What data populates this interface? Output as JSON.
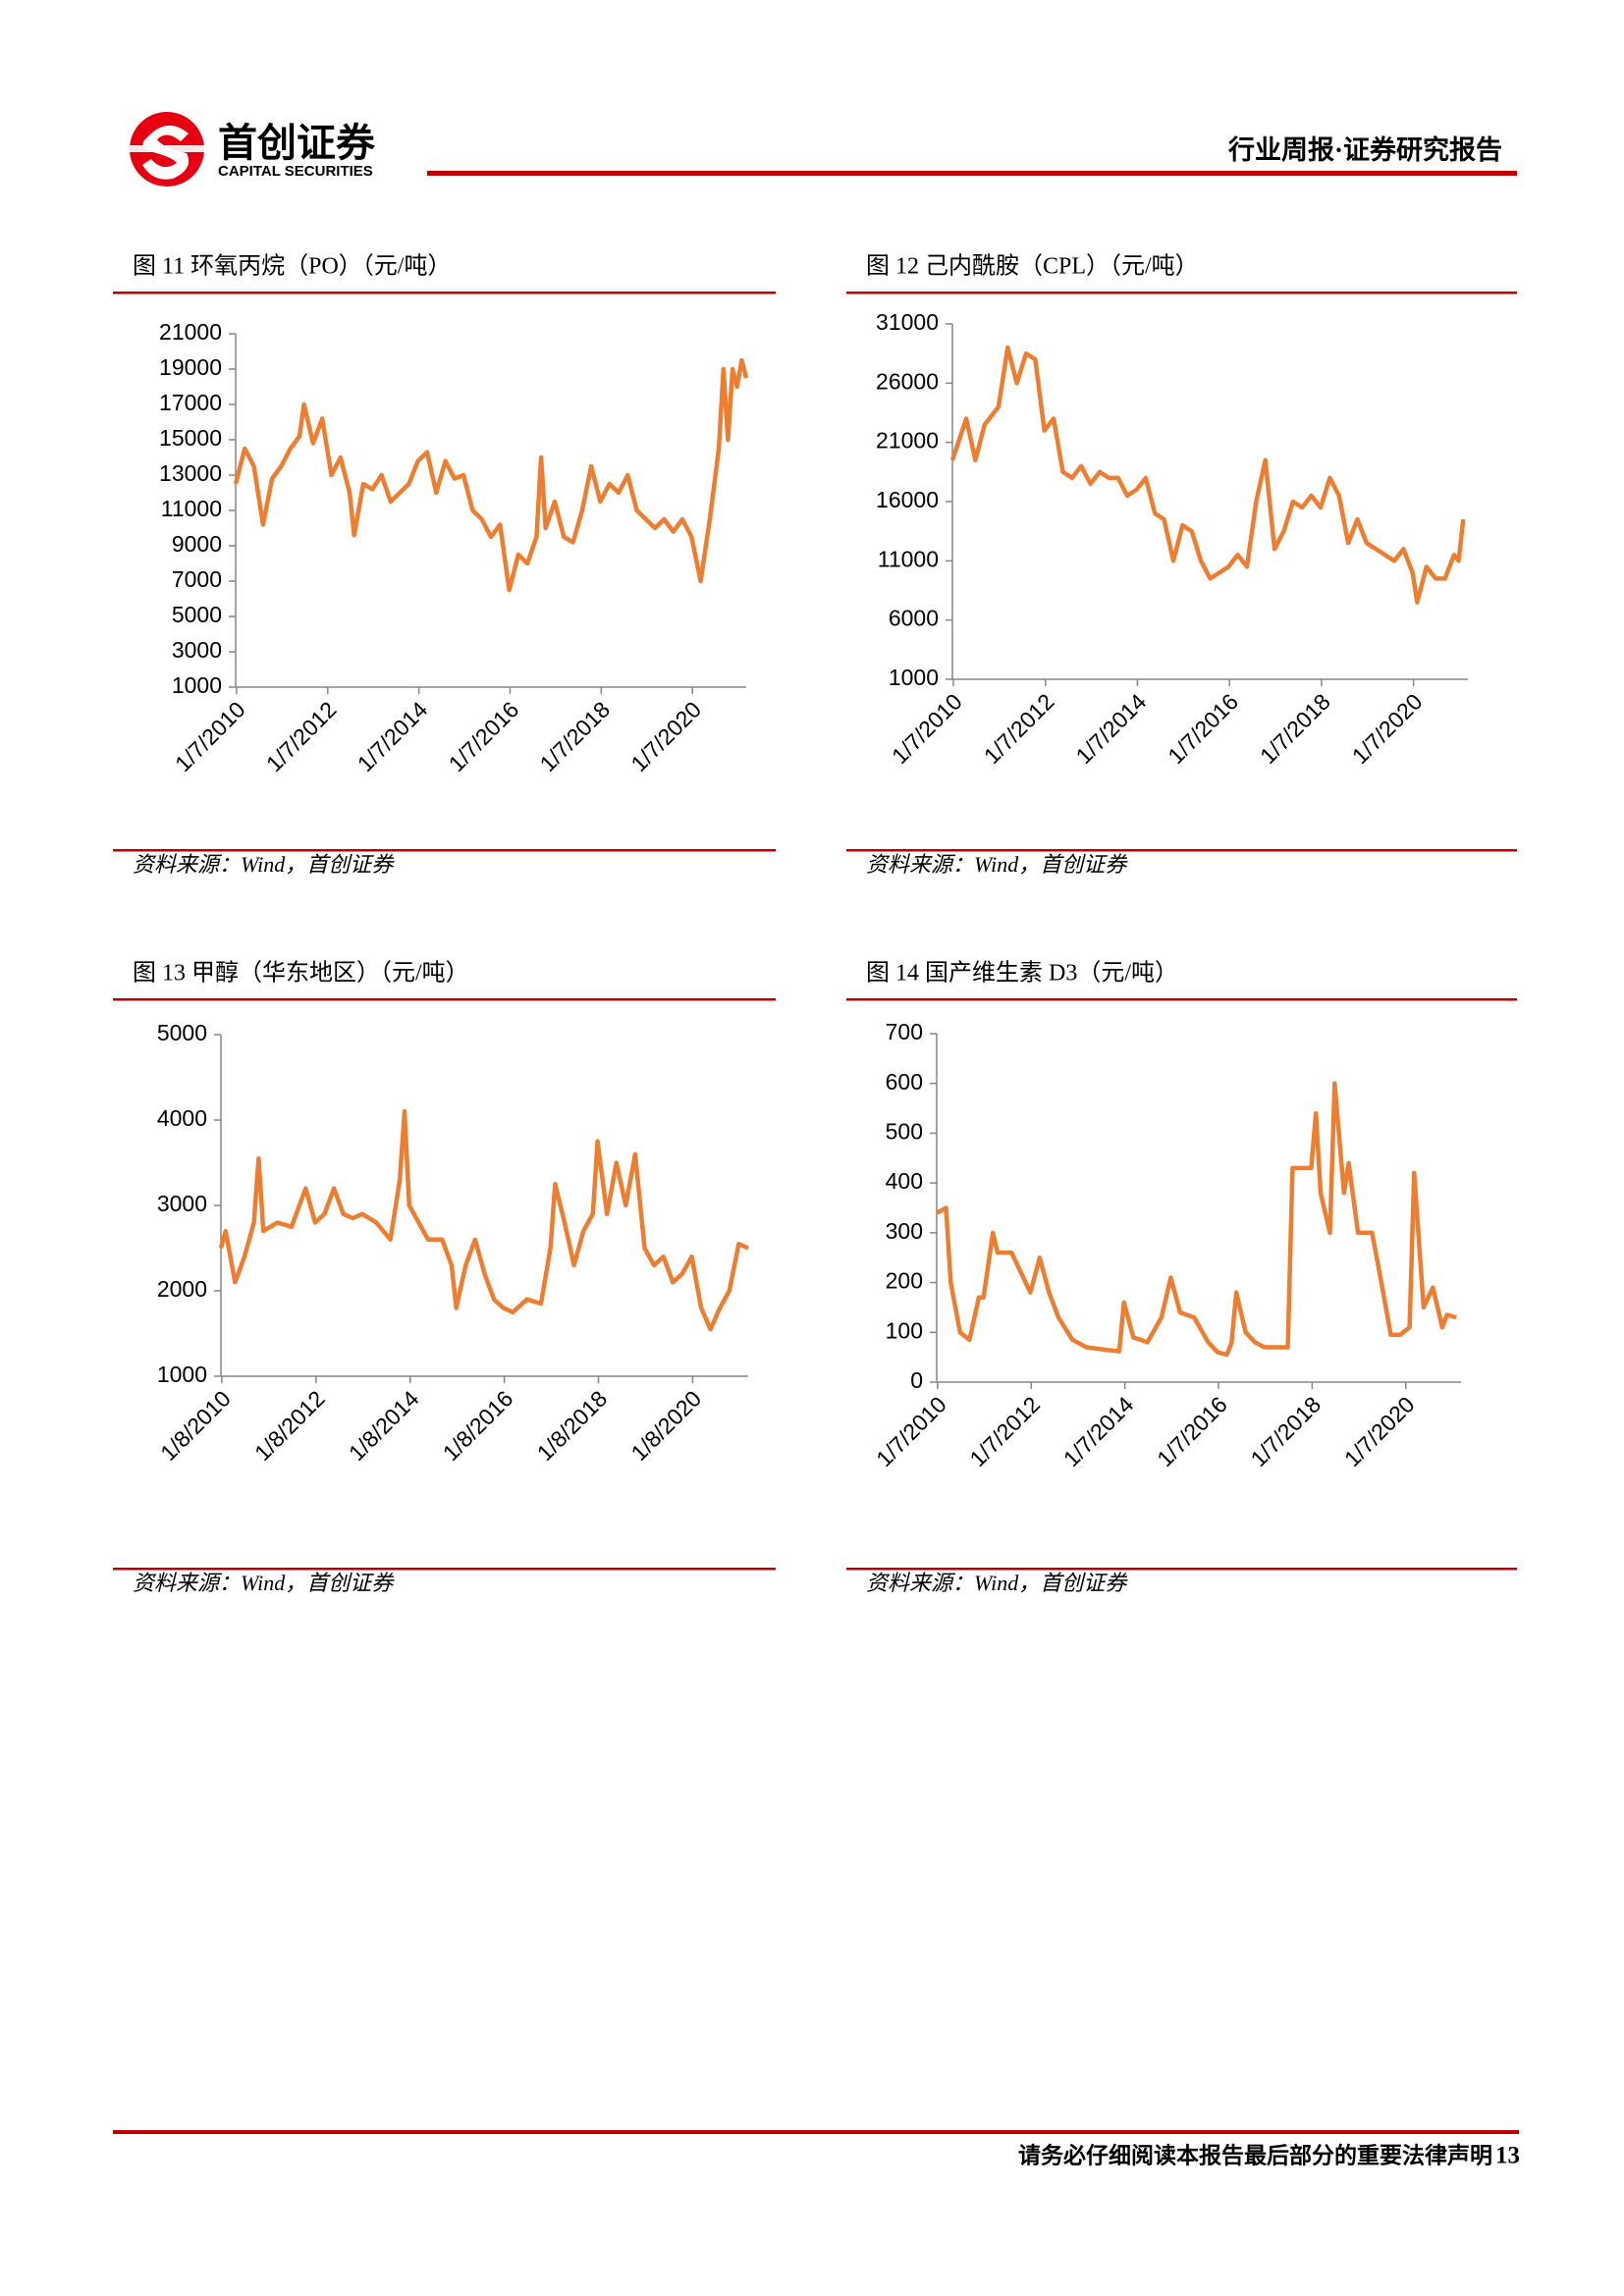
{
  "header": {
    "logo_cn": "首创证券",
    "logo_en": "CAPITAL SECURITIES",
    "report_type": "行业周报·证券研究报告"
  },
  "chart_data": [
    {
      "type": "line",
      "title": "图 11 环氧丙烷（PO）（元/吨）",
      "source": "资料来源：Wind，首创证券",
      "color": "#ED7D31",
      "x": [
        2010.0,
        2010.2,
        2010.4,
        2010.6,
        2010.8,
        2011.0,
        2011.2,
        2011.4,
        2011.5,
        2011.7,
        2011.9,
        2012.1,
        2012.3,
        2012.5,
        2012.6,
        2012.8,
        2013.0,
        2013.2,
        2013.4,
        2013.6,
        2013.8,
        2014.0,
        2014.2,
        2014.4,
        2014.6,
        2014.8,
        2015.0,
        2015.2,
        2015.4,
        2015.6,
        2015.8,
        2016.0,
        2016.2,
        2016.4,
        2016.6,
        2016.7,
        2016.8,
        2017.0,
        2017.2,
        2017.4,
        2017.6,
        2017.8,
        2018.0,
        2018.2,
        2018.4,
        2018.6,
        2018.8,
        2019.0,
        2019.2,
        2019.4,
        2019.6,
        2019.8,
        2020.0,
        2020.2,
        2020.4,
        2020.6,
        2020.7,
        2020.8,
        2020.9,
        2021.0,
        2021.1,
        2021.2
      ],
      "values": [
        12500,
        14500,
        13500,
        10200,
        12800,
        13500,
        14500,
        15200,
        17000,
        14800,
        16200,
        13000,
        14000,
        12000,
        9600,
        12500,
        12200,
        13000,
        11500,
        12000,
        12500,
        13800,
        14300,
        12000,
        13800,
        12800,
        13000,
        11000,
        10500,
        9500,
        10200,
        6500,
        8500,
        8000,
        9500,
        14000,
        10000,
        11500,
        9500,
        9200,
        11000,
        13500,
        11500,
        12500,
        12000,
        13000,
        11000,
        10500,
        10000,
        10500,
        9800,
        10500,
        9500,
        7000,
        10500,
        14500,
        19000,
        15000,
        19000,
        18000,
        19500,
        18500
      ],
      "xlim": [
        2010,
        2021.2
      ],
      "xticks": [
        {
          "value": 2010.02,
          "label": "1/7/2010"
        },
        {
          "value": 2012.02,
          "label": "1/7/2012"
        },
        {
          "value": 2014.02,
          "label": "1/7/2014"
        },
        {
          "value": 2016.02,
          "label": "1/7/2016"
        },
        {
          "value": 2018.02,
          "label": "1/7/2018"
        },
        {
          "value": 2020.02,
          "label": "1/7/2020"
        }
      ],
      "ylim": [
        1000,
        21000
      ],
      "yticks": [
        1000,
        3000,
        5000,
        7000,
        9000,
        11000,
        13000,
        15000,
        17000,
        19000,
        21000
      ]
    },
    {
      "type": "line",
      "title": "图 12 己内酰胺（CPL）（元/吨）",
      "source": "资料来源：Wind，首创证券",
      "color": "#ED7D31",
      "x": [
        2010.0,
        2010.3,
        2010.5,
        2010.7,
        2011.0,
        2011.2,
        2011.4,
        2011.6,
        2011.8,
        2012.0,
        2012.2,
        2012.4,
        2012.6,
        2012.8,
        2013.0,
        2013.2,
        2013.4,
        2013.6,
        2013.8,
        2014.0,
        2014.2,
        2014.4,
        2014.6,
        2014.8,
        2015.0,
        2015.2,
        2015.4,
        2015.6,
        2015.8,
        2016.0,
        2016.2,
        2016.4,
        2016.6,
        2016.8,
        2017.0,
        2017.2,
        2017.4,
        2017.6,
        2017.8,
        2018.0,
        2018.2,
        2018.4,
        2018.6,
        2018.8,
        2019.0,
        2019.2,
        2019.4,
        2019.6,
        2019.8,
        2020.0,
        2020.1,
        2020.3,
        2020.5,
        2020.7,
        2020.9,
        2021.0,
        2021.1
      ],
      "values": [
        19500,
        23000,
        19500,
        22500,
        24000,
        29000,
        26000,
        28500,
        28000,
        22000,
        23000,
        18500,
        18000,
        19000,
        17500,
        18500,
        18000,
        18000,
        16500,
        17000,
        18000,
        15000,
        14500,
        11000,
        14000,
        13500,
        11000,
        9500,
        10000,
        10500,
        11500,
        10500,
        16000,
        19500,
        12000,
        13500,
        16000,
        15500,
        16500,
        15500,
        18000,
        16500,
        12500,
        14500,
        12500,
        12000,
        11500,
        11000,
        12000,
        10000,
        7500,
        10500,
        9500,
        9500,
        11500,
        11000,
        14500
      ],
      "xlim": [
        2010,
        2021.2
      ],
      "xticks": [
        {
          "value": 2010.02,
          "label": "1/7/2010"
        },
        {
          "value": 2012.02,
          "label": "1/7/2012"
        },
        {
          "value": 2014.02,
          "label": "1/7/2014"
        },
        {
          "value": 2016.02,
          "label": "1/7/2016"
        },
        {
          "value": 2018.02,
          "label": "1/7/2018"
        },
        {
          "value": 2020.02,
          "label": "1/7/2020"
        }
      ],
      "ylim": [
        1000,
        31000
      ],
      "yticks": [
        1000,
        6000,
        11000,
        16000,
        21000,
        26000,
        31000
      ]
    },
    {
      "type": "line",
      "title": "图 13 甲醇（华东地区）（元/吨）",
      "source": "资料来源：Wind，首创证券",
      "color": "#ED7D31",
      "x": [
        2010.0,
        2010.1,
        2010.3,
        2010.5,
        2010.7,
        2010.8,
        2010.9,
        2011.2,
        2011.5,
        2011.8,
        2012.0,
        2012.2,
        2012.4,
        2012.6,
        2012.8,
        2013.0,
        2013.3,
        2013.6,
        2013.8,
        2013.9,
        2014.0,
        2014.2,
        2014.4,
        2014.7,
        2014.9,
        2015.0,
        2015.2,
        2015.4,
        2015.6,
        2015.8,
        2016.0,
        2016.2,
        2016.5,
        2016.8,
        2017.0,
        2017.1,
        2017.3,
        2017.5,
        2017.7,
        2017.9,
        2018.0,
        2018.2,
        2018.4,
        2018.6,
        2018.8,
        2019.0,
        2019.2,
        2019.4,
        2019.6,
        2019.8,
        2020.0,
        2020.2,
        2020.4,
        2020.6,
        2020.8,
        2021.0,
        2021.2
      ],
      "values": [
        2500,
        2700,
        2100,
        2400,
        2800,
        3550,
        2700,
        2800,
        2750,
        3200,
        2800,
        2900,
        3200,
        2900,
        2850,
        2900,
        2800,
        2600,
        3300,
        4100,
        3000,
        2800,
        2600,
        2600,
        2300,
        1800,
        2300,
        2600,
        2200,
        1900,
        1800,
        1750,
        1900,
        1850,
        2500,
        3250,
        2800,
        2300,
        2700,
        2900,
        3750,
        2900,
        3500,
        3000,
        3600,
        2500,
        2300,
        2400,
        2100,
        2200,
        2400,
        1800,
        1550,
        1800,
        2000,
        2550,
        2500
      ],
      "xlim": [
        2010,
        2021.2
      ],
      "xticks": [
        {
          "value": 2010.02,
          "label": "1/8/2010"
        },
        {
          "value": 2012.02,
          "label": "1/8/2012"
        },
        {
          "value": 2014.02,
          "label": "1/8/2014"
        },
        {
          "value": 2016.02,
          "label": "1/8/2016"
        },
        {
          "value": 2018.02,
          "label": "1/8/2018"
        },
        {
          "value": 2020.02,
          "label": "1/8/2020"
        }
      ],
      "ylim": [
        1000,
        5000
      ],
      "yticks": [
        1000,
        2000,
        3000,
        4000,
        5000
      ]
    },
    {
      "type": "line",
      "title": "图 14 国产维生素 D3（元/吨）",
      "source": "资料来源：Wind，首创证券",
      "color": "#ED7D31",
      "x": [
        2010.0,
        2010.2,
        2010.3,
        2010.5,
        2010.7,
        2010.9,
        2011.0,
        2011.2,
        2011.3,
        2011.6,
        2011.8,
        2012.0,
        2012.2,
        2012.4,
        2012.6,
        2012.9,
        2013.2,
        2013.6,
        2013.9,
        2014.0,
        2014.2,
        2014.5,
        2014.8,
        2015.0,
        2015.2,
        2015.5,
        2015.8,
        2016.0,
        2016.2,
        2016.3,
        2016.4,
        2016.6,
        2016.8,
        2017.0,
        2017.3,
        2017.5,
        2017.6,
        2018.0,
        2018.1,
        2018.2,
        2018.4,
        2018.5,
        2018.7,
        2018.8,
        2019.0,
        2019.3,
        2019.5,
        2019.7,
        2019.9,
        2020.1,
        2020.2,
        2020.4,
        2020.6,
        2020.8,
        2020.9,
        2021.1
      ],
      "values": [
        340,
        350,
        200,
        100,
        85,
        170,
        170,
        300,
        260,
        260,
        220,
        180,
        250,
        180,
        130,
        85,
        70,
        65,
        62,
        160,
        90,
        80,
        130,
        210,
        140,
        130,
        80,
        60,
        55,
        80,
        180,
        100,
        80,
        70,
        70,
        70,
        430,
        430,
        540,
        380,
        300,
        600,
        380,
        440,
        300,
        300,
        200,
        95,
        95,
        110,
        420,
        150,
        190,
        110,
        135,
        130
      ],
      "xlim": [
        2010,
        2021.2
      ],
      "xticks": [
        {
          "value": 2010.02,
          "label": "1/7/2010"
        },
        {
          "value": 2012.02,
          "label": "1/7/2012"
        },
        {
          "value": 2014.02,
          "label": "1/7/2014"
        },
        {
          "value": 2016.02,
          "label": "1/7/2016"
        },
        {
          "value": 2018.02,
          "label": "1/7/2018"
        },
        {
          "value": 2020.02,
          "label": "1/7/2020"
        }
      ],
      "ylim": [
        0,
        700
      ],
      "yticks": [
        0,
        100,
        200,
        300,
        400,
        500,
        600,
        700
      ]
    }
  ],
  "footer": {
    "disclaimer": "请务必仔细阅读本报告最后部分的重要法律声明",
    "page": "13"
  }
}
